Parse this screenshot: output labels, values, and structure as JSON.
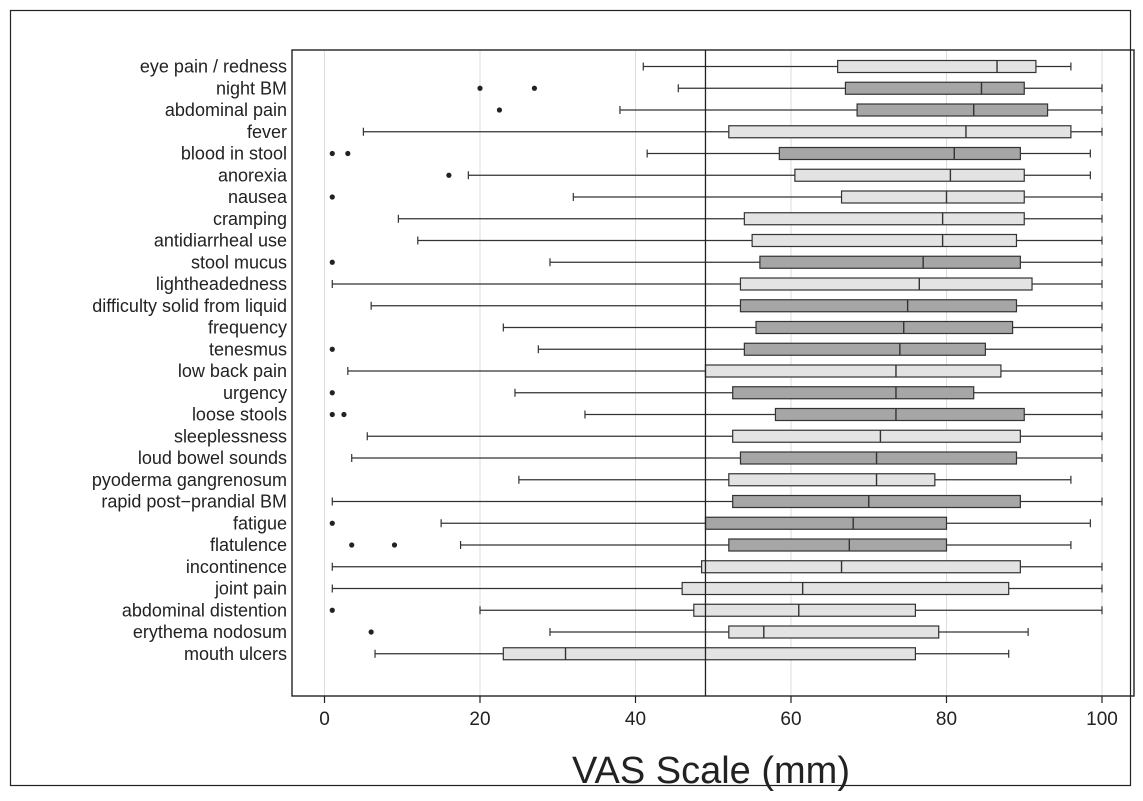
{
  "chart_data": {
    "type": "box",
    "title": "",
    "xlabel": "VAS Scale (mm)",
    "ylabel": "",
    "xlim": [
      -4,
      103
    ],
    "xticks": [
      0,
      20,
      40,
      60,
      80,
      100
    ],
    "xtick_labels": [
      "0",
      "20",
      "40",
      "60",
      "80",
      "100"
    ],
    "grid": true,
    "reference_line_x": 49,
    "colors": {
      "light_box": "#e3e3e3",
      "dark_box": "#a6a6a6",
      "line": "#333333",
      "grid": "#dddddd"
    },
    "categories": [
      "eye pain / redness",
      "night BM",
      "abdominal pain",
      "fever",
      "blood in stool",
      "anorexia",
      "nausea",
      "cramping",
      "antidiarrheal use",
      "stool mucus",
      "lightheadedness",
      "difficulty solid from liquid",
      "frequency",
      "tenesmus",
      "low back pain",
      "urgency",
      "loose stools",
      "sleeplessness",
      "loud bowel sounds",
      "pyoderma gangrenosum",
      "rapid post−prandial BM",
      "fatigue",
      "flatulence",
      "incontinence",
      "joint pain",
      "abdominal distention",
      "erythema nodosum",
      "mouth ulcers"
    ],
    "boxes": [
      {
        "whisker_low": 41,
        "q1": 66,
        "median": 86.5,
        "q3": 91.5,
        "whisker_high": 96,
        "outliers": [],
        "shade": "light"
      },
      {
        "whisker_low": 45.5,
        "q1": 67,
        "median": 84.5,
        "q3": 90,
        "whisker_high": 100,
        "outliers": [
          20,
          27
        ],
        "shade": "dark"
      },
      {
        "whisker_low": 38,
        "q1": 68.5,
        "median": 83.5,
        "q3": 93,
        "whisker_high": 100,
        "outliers": [
          22.5
        ],
        "shade": "dark"
      },
      {
        "whisker_low": 5,
        "q1": 52,
        "median": 82.5,
        "q3": 96,
        "whisker_high": 100,
        "outliers": [],
        "shade": "light"
      },
      {
        "whisker_low": 41.5,
        "q1": 58.5,
        "median": 81,
        "q3": 89.5,
        "whisker_high": 98.5,
        "outliers": [
          1,
          3
        ],
        "shade": "dark"
      },
      {
        "whisker_low": 18.5,
        "q1": 60.5,
        "median": 80.5,
        "q3": 90,
        "whisker_high": 98.5,
        "outliers": [
          16
        ],
        "shade": "light"
      },
      {
        "whisker_low": 32,
        "q1": 66.5,
        "median": 80,
        "q3": 90,
        "whisker_high": 100,
        "outliers": [
          1
        ],
        "shade": "light"
      },
      {
        "whisker_low": 9.5,
        "q1": 54,
        "median": 79.5,
        "q3": 90,
        "whisker_high": 100,
        "outliers": [],
        "shade": "light"
      },
      {
        "whisker_low": 12,
        "q1": 55,
        "median": 79.5,
        "q3": 89,
        "whisker_high": 100,
        "outliers": [],
        "shade": "light"
      },
      {
        "whisker_low": 29,
        "q1": 56,
        "median": 77,
        "q3": 89.5,
        "whisker_high": 100,
        "outliers": [
          1
        ],
        "shade": "dark"
      },
      {
        "whisker_low": 1,
        "q1": 53.5,
        "median": 76.5,
        "q3": 91,
        "whisker_high": 100,
        "outliers": [],
        "shade": "light"
      },
      {
        "whisker_low": 6,
        "q1": 53.5,
        "median": 75,
        "q3": 89,
        "whisker_high": 100,
        "outliers": [],
        "shade": "dark"
      },
      {
        "whisker_low": 23,
        "q1": 55.5,
        "median": 74.5,
        "q3": 88.5,
        "whisker_high": 100,
        "outliers": [],
        "shade": "dark"
      },
      {
        "whisker_low": 27.5,
        "q1": 54,
        "median": 74,
        "q3": 85,
        "whisker_high": 100,
        "outliers": [
          1
        ],
        "shade": "dark"
      },
      {
        "whisker_low": 3,
        "q1": 49,
        "median": 73.5,
        "q3": 87,
        "whisker_high": 100,
        "outliers": [],
        "shade": "light"
      },
      {
        "whisker_low": 24.5,
        "q1": 52.5,
        "median": 73.5,
        "q3": 83.5,
        "whisker_high": 100,
        "outliers": [
          1
        ],
        "shade": "dark"
      },
      {
        "whisker_low": 33.5,
        "q1": 58,
        "median": 73.5,
        "q3": 90,
        "whisker_high": 100,
        "outliers": [
          1,
          2.5
        ],
        "shade": "dark"
      },
      {
        "whisker_low": 5.5,
        "q1": 52.5,
        "median": 71.5,
        "q3": 89.5,
        "whisker_high": 100,
        "outliers": [],
        "shade": "light"
      },
      {
        "whisker_low": 3.5,
        "q1": 53.5,
        "median": 71,
        "q3": 89,
        "whisker_high": 100,
        "outliers": [],
        "shade": "dark"
      },
      {
        "whisker_low": 25,
        "q1": 52,
        "median": 71,
        "q3": 78.5,
        "whisker_high": 96,
        "outliers": [],
        "shade": "light"
      },
      {
        "whisker_low": 1,
        "q1": 52.5,
        "median": 70,
        "q3": 89.5,
        "whisker_high": 100,
        "outliers": [],
        "shade": "dark"
      },
      {
        "whisker_low": 15,
        "q1": 49,
        "median": 68,
        "q3": 80,
        "whisker_high": 98.5,
        "outliers": [
          1
        ],
        "shade": "dark"
      },
      {
        "whisker_low": 17.5,
        "q1": 52,
        "median": 67.5,
        "q3": 80,
        "whisker_high": 96,
        "outliers": [
          3.5,
          9
        ],
        "shade": "dark"
      },
      {
        "whisker_low": 1,
        "q1": 48.5,
        "median": 66.5,
        "q3": 89.5,
        "whisker_high": 100,
        "outliers": [],
        "shade": "light"
      },
      {
        "whisker_low": 1,
        "q1": 46,
        "median": 61.5,
        "q3": 88,
        "whisker_high": 100,
        "outliers": [],
        "shade": "light"
      },
      {
        "whisker_low": 20,
        "q1": 47.5,
        "median": 61,
        "q3": 76,
        "whisker_high": 100,
        "outliers": [
          1
        ],
        "shade": "light"
      },
      {
        "whisker_low": 29,
        "q1": 52,
        "median": 56.5,
        "q3": 79,
        "whisker_high": 90.5,
        "outliers": [
          6
        ],
        "shade": "light"
      },
      {
        "whisker_low": 6.5,
        "q1": 23,
        "median": 31,
        "q3": 76,
        "whisker_high": 88,
        "outliers": [],
        "shade": "light"
      }
    ]
  }
}
